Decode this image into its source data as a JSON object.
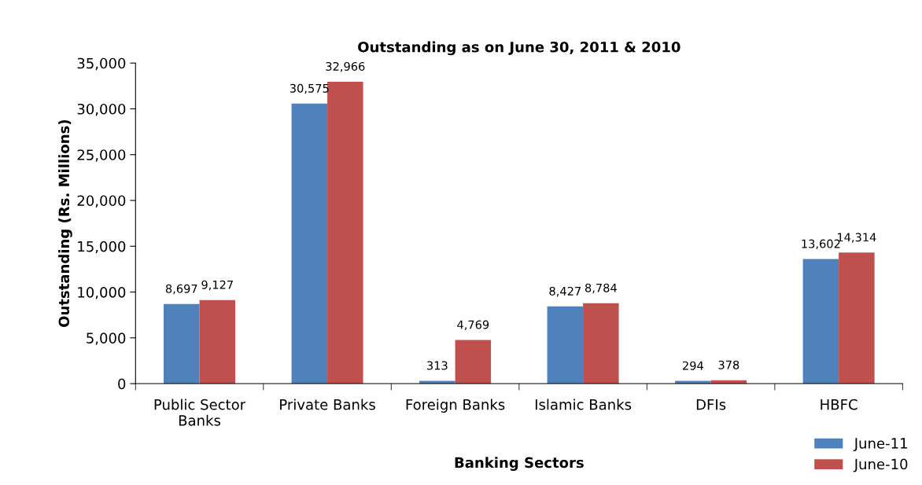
{
  "chart_data": {
    "type": "bar",
    "title": "Outstanding as on June 30, 2011 & 2010",
    "xlabel": "Banking Sectors",
    "ylabel": "Outstanding (Rs. Millions)",
    "categories": [
      "Public Sector\nBanks",
      "Private Banks",
      "Foreign Banks",
      "Islamic Banks",
      "DFIs",
      "HBFC"
    ],
    "series": [
      {
        "name": "June-11",
        "color": "#4f81bd",
        "values": [
          8697,
          30575,
          313,
          8427,
          294,
          13602
        ],
        "value_labels": [
          "8,697",
          "30,575",
          "313",
          "8,427",
          "294",
          "13,602"
        ]
      },
      {
        "name": "June-10",
        "color": "#c0504d",
        "values": [
          9127,
          32966,
          4769,
          8784,
          378,
          14314
        ],
        "value_labels": [
          "9,127",
          "32,966",
          "4,769",
          "8,784",
          "378",
          "14,314"
        ]
      }
    ],
    "ylim": [
      0,
      35000
    ],
    "yticks": [
      {
        "value": 0,
        "label": "0"
      },
      {
        "value": 5000,
        "label": "5,000"
      },
      {
        "value": 10000,
        "label": "10,000"
      },
      {
        "value": 15000,
        "label": "15,000"
      },
      {
        "value": 20000,
        "label": "20,000"
      },
      {
        "value": 25000,
        "label": "25,000"
      },
      {
        "value": 30000,
        "label": "30,000"
      },
      {
        "value": 35000,
        "label": "35,000"
      }
    ],
    "legend": "bottom right"
  }
}
